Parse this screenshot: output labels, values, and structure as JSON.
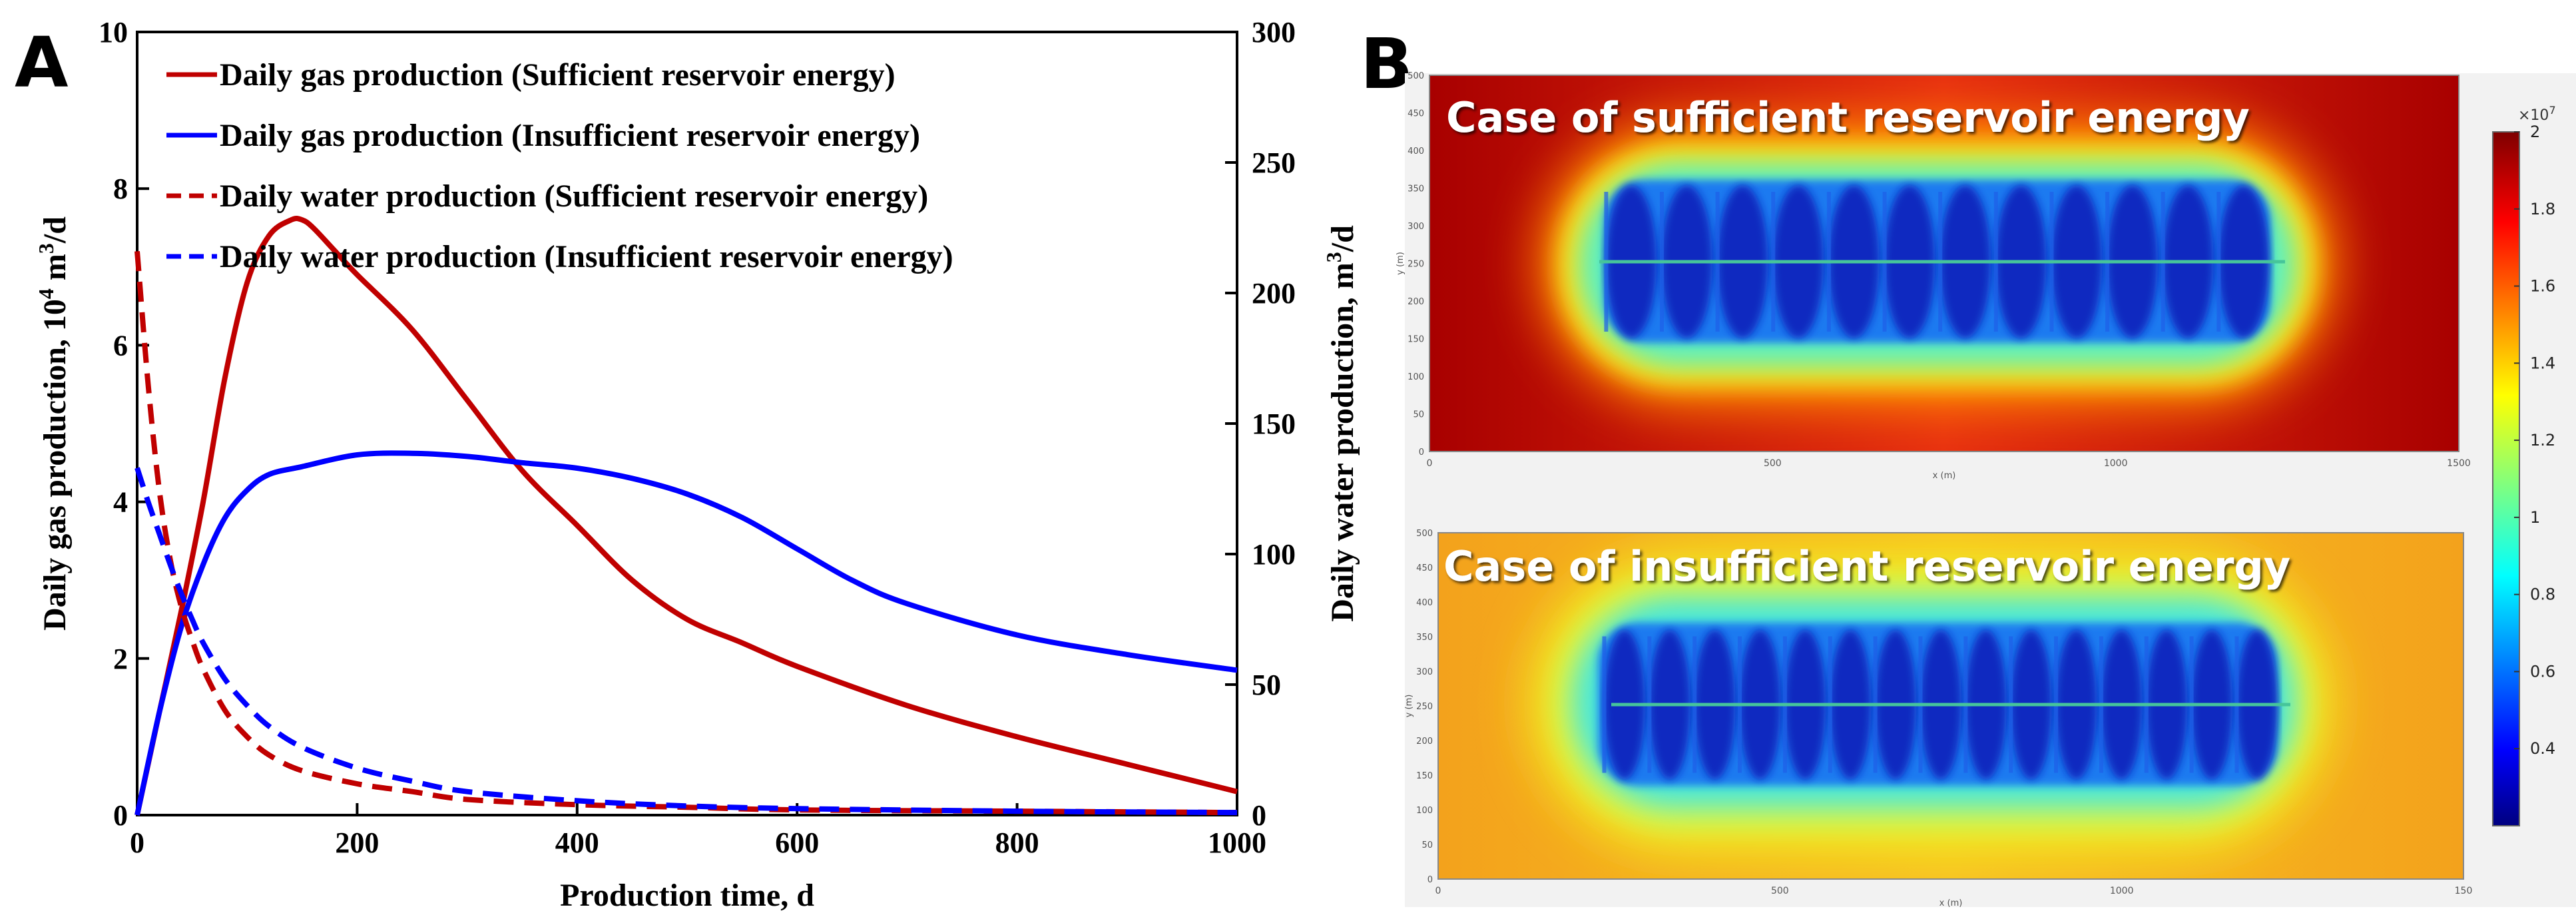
{
  "panel_labels": {
    "a": "A",
    "b": "B"
  },
  "colors": {
    "sufficient": "#c00000",
    "insufficient": "#0000ff"
  },
  "chart_data": [
    {
      "type": "line",
      "panel": "A",
      "xlabel": "Production time, d",
      "ylabel_left": "Daily gas production, 10",
      "ylabel_left_sup": "4",
      "ylabel_left_mid": " m",
      "ylabel_left_sup2": "3",
      "ylabel_left_end": "/d",
      "ylabel_right": "Daily water production, m",
      "ylabel_right_sup": "3",
      "ylabel_right_end": "/d",
      "xlim": [
        0,
        1000
      ],
      "ylim_left": [
        0,
        10
      ],
      "ylim_right": [
        0,
        300
      ],
      "xticks": [
        "0",
        "200",
        "400",
        "600",
        "800",
        "1000"
      ],
      "yticks_left": [
        "0",
        "2",
        "4",
        "6",
        "8",
        "10"
      ],
      "yticks_right": [
        "0",
        "50",
        "100",
        "150",
        "200",
        "250",
        "300"
      ],
      "legend_position": "top-left",
      "series": [
        {
          "name": "Daily gas production (Sufficient reservoir energy)",
          "axis": "left",
          "color": "#c00000",
          "dash": false,
          "x": [
            0,
            20,
            40,
            60,
            80,
            100,
            120,
            140,
            150,
            160,
            180,
            200,
            250,
            300,
            350,
            400,
            450,
            500,
            550,
            600,
            700,
            800,
            900,
            1000
          ],
          "y": [
            0,
            1.3,
            2.6,
            4.0,
            5.6,
            6.8,
            7.4,
            7.6,
            7.6,
            7.5,
            7.2,
            6.9,
            6.2,
            5.3,
            4.4,
            3.7,
            3.0,
            2.5,
            2.2,
            1.9,
            1.4,
            1.0,
            0.65,
            0.3
          ]
        },
        {
          "name": "Daily gas production (Insufficient reservoir energy)",
          "axis": "left",
          "color": "#0000ff",
          "dash": false,
          "x": [
            0,
            20,
            40,
            60,
            80,
            100,
            120,
            150,
            200,
            250,
            300,
            350,
            400,
            450,
            500,
            550,
            600,
            650,
            700,
            800,
            900,
            1000
          ],
          "y": [
            0,
            1.3,
            2.4,
            3.2,
            3.8,
            4.15,
            4.35,
            4.45,
            4.6,
            4.62,
            4.58,
            4.5,
            4.43,
            4.3,
            4.1,
            3.8,
            3.4,
            3.0,
            2.7,
            2.3,
            2.05,
            1.85
          ]
        },
        {
          "name": "Daily water production (Sufficient reservoir energy)",
          "axis": "right",
          "color": "#c00000",
          "dash": true,
          "x": [
            0,
            10,
            20,
            30,
            40,
            50,
            60,
            80,
            100,
            120,
            150,
            200,
            250,
            300,
            400,
            500,
            600,
            800,
            1000
          ],
          "y": [
            216,
            165,
            125,
            98,
            80,
            67,
            56,
            40,
            30,
            23,
            17,
            12,
            9,
            6,
            4,
            3,
            2,
            1.5,
            1
          ]
        },
        {
          "name": "Daily water production (Insufficient reservoir energy)",
          "axis": "right",
          "color": "#0000ff",
          "dash": true,
          "x": [
            0,
            10,
            20,
            30,
            40,
            50,
            60,
            80,
            100,
            120,
            150,
            200,
            250,
            300,
            400,
            500,
            600,
            800,
            1000
          ],
          "y": [
            133,
            120,
            108,
            96,
            85,
            75,
            66,
            52,
            42,
            34,
            26,
            18,
            13,
            9,
            5.5,
            3.5,
            2.5,
            1.5,
            1
          ]
        }
      ]
    },
    {
      "type": "heatmap",
      "panel": "B",
      "colorbar_exponent_base": "×10",
      "colorbar_exponent": "7",
      "colorbar_ticks": [
        "2",
        "1.8",
        "1.6",
        "1.4",
        "1.2",
        "1",
        "0.8",
        "0.6",
        "0.4"
      ],
      "colorbar_values": [
        2,
        1.8,
        1.6,
        1.4,
        1.2,
        1,
        0.8,
        0.6,
        0.4
      ],
      "colorbar_range": [
        0.2,
        2
      ],
      "maps": [
        {
          "title": "Case of sufficient reservoir energy",
          "background_value": 1.95,
          "mid_value": 1.4,
          "well_value": 0.45,
          "xticks": [
            "0",
            "500",
            "1000",
            "1500"
          ],
          "yticks": [
            "500",
            "450",
            "400",
            "350",
            "300",
            "250",
            "200",
            "150",
            "100",
            "50",
            "0"
          ],
          "xlabel": "x (m)",
          "ylabel": "y (m)",
          "fracture_count": 12
        },
        {
          "title": "Case of insufficient reservoir energy",
          "background_value": 1.4,
          "mid_value": 1.2,
          "well_value": 0.45,
          "xticks": [
            "0",
            "500",
            "1000",
            "150"
          ],
          "yticks": [
            "500",
            "450",
            "400",
            "350",
            "300",
            "250",
            "200",
            "150",
            "100",
            "50",
            "0"
          ],
          "xlabel": "x (m)",
          "ylabel": "y (m)",
          "fracture_count": 15
        }
      ]
    }
  ]
}
